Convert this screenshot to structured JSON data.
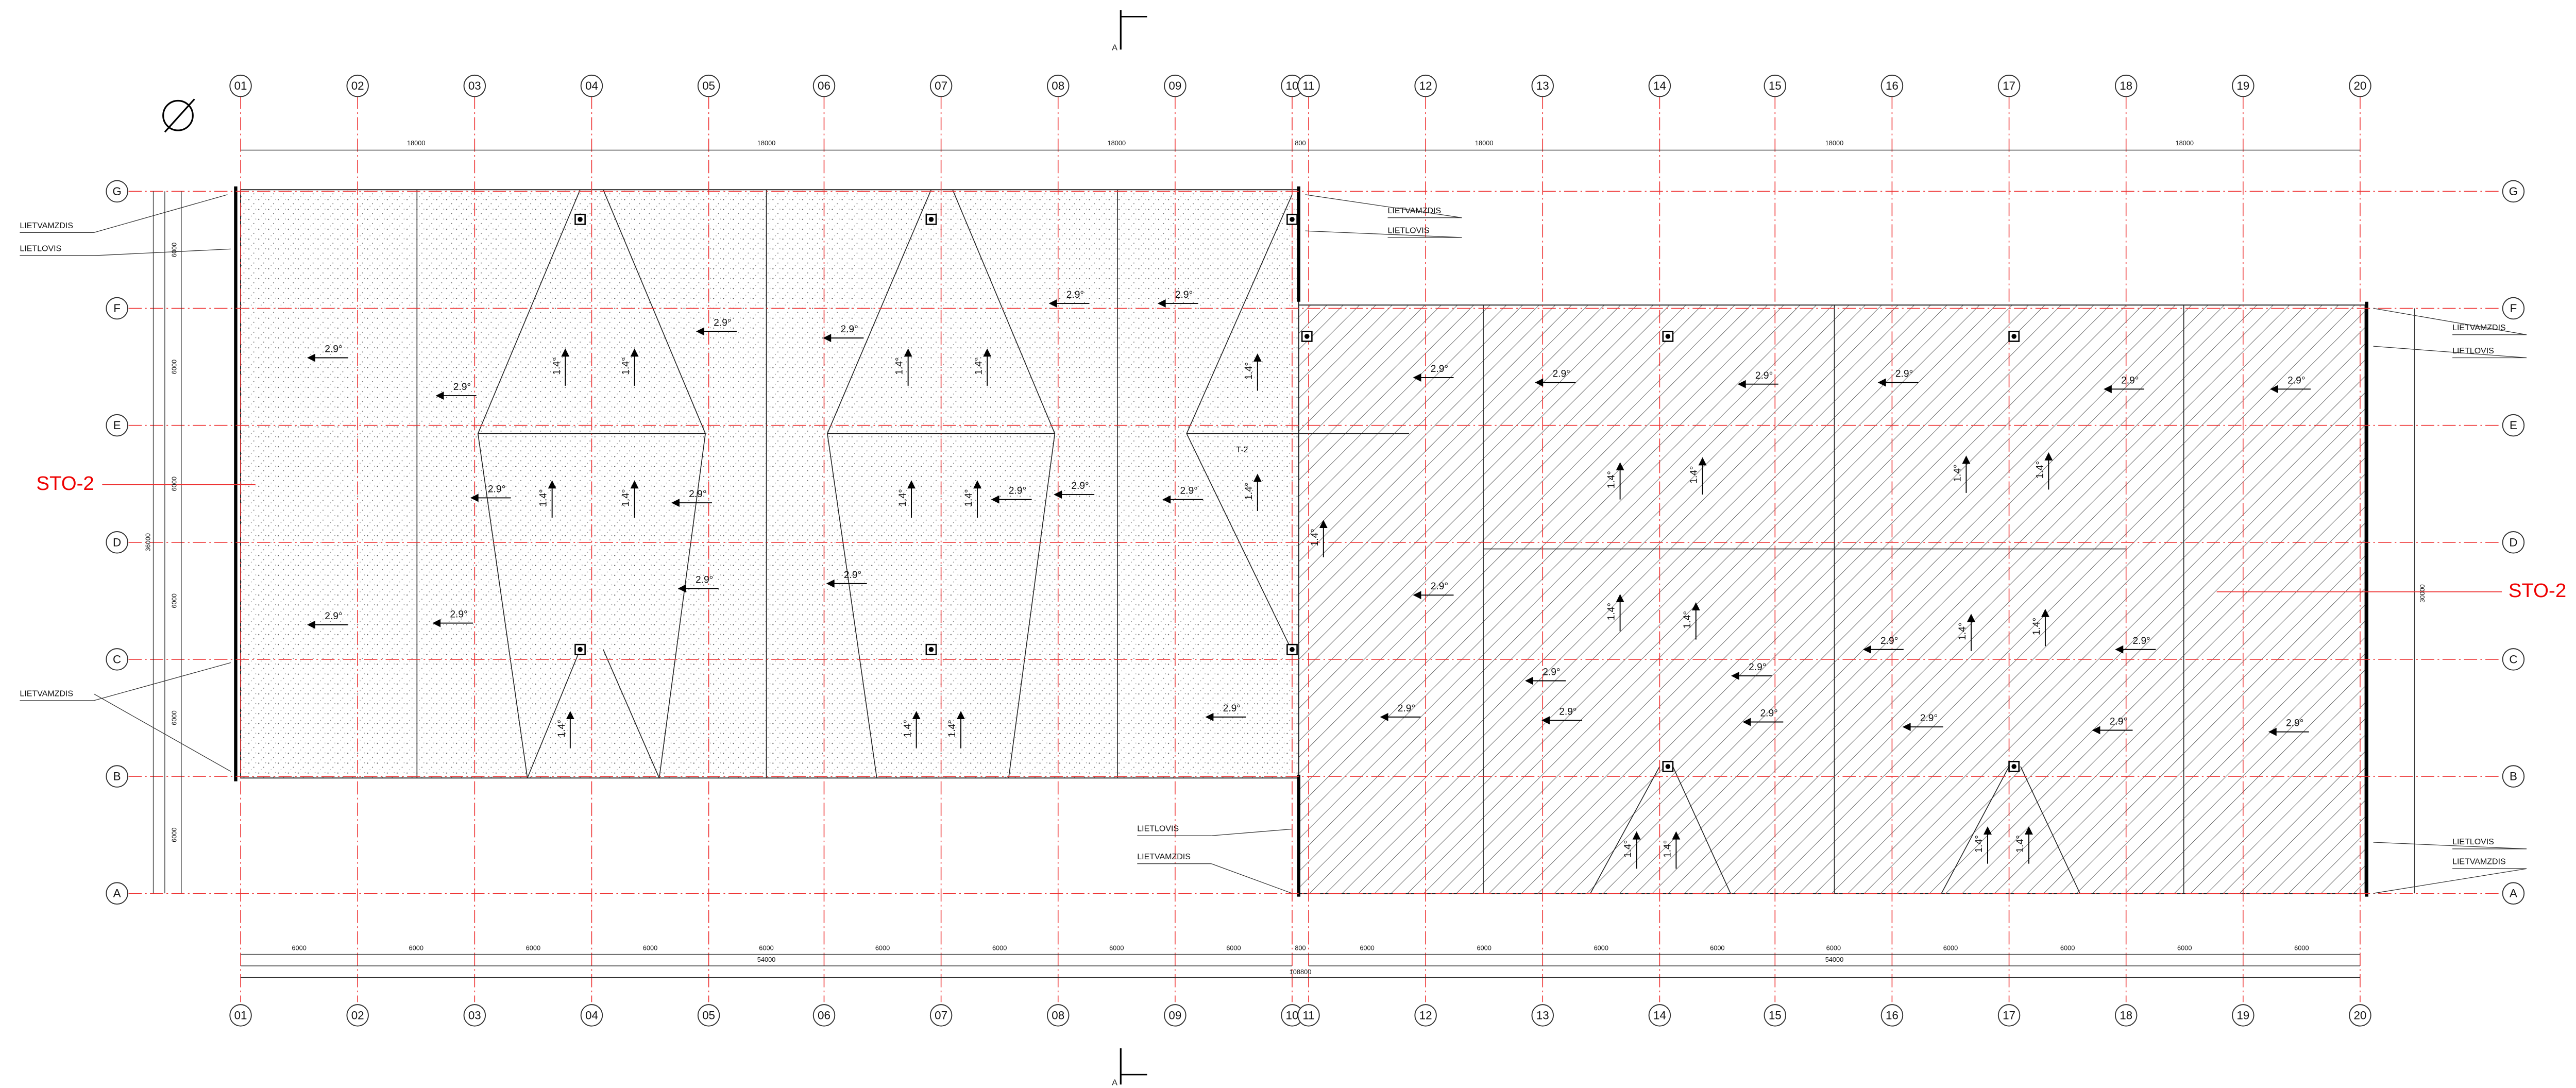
{
  "section_marks": [
    "A",
    "A"
  ],
  "column_labels_top": [
    "01",
    "02",
    "03",
    "04",
    "05",
    "06",
    "07",
    "08",
    "09",
    "10",
    "11",
    "12",
    "13",
    "14",
    "15",
    "16",
    "17",
    "18",
    "19",
    "20"
  ],
  "column_labels_bottom": [
    "01",
    "02",
    "03",
    "04",
    "05",
    "06",
    "07",
    "08",
    "09",
    "10",
    "11",
    "12",
    "13",
    "14",
    "15",
    "16",
    "17",
    "18",
    "19",
    "20"
  ],
  "row_labels_left": [
    "G",
    "F",
    "E",
    "D",
    "C",
    "B",
    "A"
  ],
  "row_labels_right": [
    "G",
    "F",
    "E",
    "D",
    "C",
    "B",
    "A"
  ],
  "dimensions_top": [
    "18000",
    "18000",
    "18000",
    "800",
    "18000",
    "18000",
    "18000"
  ],
  "dimensions_bottom": [
    "6000",
    "6000",
    "6000",
    "6000",
    "6000",
    "6000",
    "6000",
    "6000",
    "6000",
    "800",
    "6000",
    "6000",
    "6000",
    "6000",
    "6000",
    "6000",
    "6000",
    "6000",
    "6000"
  ],
  "dimension_totals_bottom": [
    "54000",
    "108800",
    "54000"
  ],
  "dimensions_left": [
    "6000",
    "6000",
    "6000",
    "6000",
    "6000",
    "6000"
  ],
  "dimension_total_left": "36000",
  "dimension_total_right": "30000",
  "callouts": [
    "LIETVAMZDIS",
    "LIETLOVIS",
    "LIETVAMZDIS",
    "LIETVAMZDIS",
    "LIETLOVIS",
    "LIETVAMZDIS",
    "LIETLOVIS",
    "LIETLOVIS",
    "LIETVAMZDIS",
    "LIETLOVIS",
    "LIETVAMZDIS"
  ],
  "zone_labels": [
    "STO-2",
    "STO-2"
  ],
  "tag": "T-2",
  "slopes_horizontal": [
    "2.9°",
    "2.9°",
    "2.9°",
    "2.9°",
    "2.9°",
    "2.9°",
    "2.9°",
    "2.9°",
    "2.9°",
    "2.9°",
    "2.9°",
    "2.9°",
    "2.9°",
    "2.9°",
    "2.9°",
    "2.9°",
    "2.9°",
    "2.9°",
    "2.9°",
    "2.9°",
    "2.9°",
    "2.9°",
    "2.9°",
    "2.9°",
    "2.9°",
    "2.9°",
    "2.9°",
    "2.9°",
    "2.9°",
    "2.9°",
    "2.9°",
    "2.9°",
    "2.9°"
  ],
  "slopes_vertical": [
    "1.4°",
    "1.4°",
    "1.4°",
    "1.4°",
    "1.4°",
    "1.4°",
    "1.4°",
    "1.4°",
    "1.4°",
    "1.4°",
    "1.4°",
    "1.4°",
    "1.4°",
    "1.4°",
    "1.4°",
    "1.4°",
    "1.4°",
    "1.4°",
    "1.4°",
    "1.4°",
    "1.4°",
    "1.4°",
    "1.4°",
    "1.4°",
    "1.4°",
    "1.4°"
  ]
}
